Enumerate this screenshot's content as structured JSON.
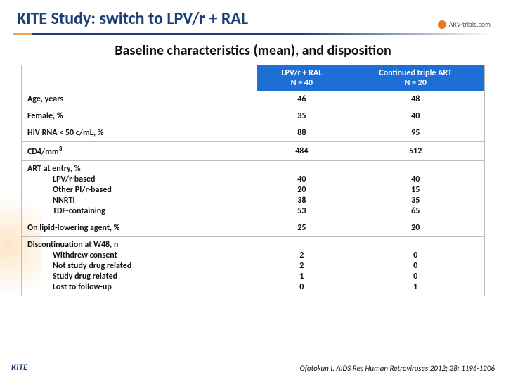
{
  "title": "KITE Study: switch to LPV/r + RAL",
  "logo_text": "ARV-trials.com",
  "subtitle": "Baseline characteristics (mean), and disposition",
  "table": {
    "header_bg": "#1d6fd6",
    "header_text_color": "#ffffff",
    "border_color": "#bdbdbd",
    "col_a": {
      "line1": "LPV/r + RAL",
      "line2": "N = 40"
    },
    "col_b": {
      "line1": "Continued triple ART",
      "line2": "N = 20"
    },
    "rows": [
      {
        "label": "Age, years",
        "a": "46",
        "b": "48"
      },
      {
        "label": "Female, %",
        "a": "35",
        "b": "40"
      },
      {
        "label": "HIV RNA < 50 c/mL, %",
        "a": "88",
        "b": "95"
      },
      {
        "label_html": "CD4/mm<sup>3</sup>",
        "a": "484",
        "b": "512"
      },
      {
        "label": "ART at entry, %",
        "subs": [
          "LPV/r-based",
          "Other PI/r-based",
          "NNRTI",
          "TDF-containing"
        ],
        "a_lines": [
          "40",
          "20",
          "38",
          "53"
        ],
        "b_lines": [
          "40",
          "15",
          "35",
          "65"
        ]
      },
      {
        "label": "On lipid-lowering agent, %",
        "a": "25",
        "b": "20"
      },
      {
        "label": "Discontinuation at W48, n",
        "subs": [
          "Withdrew consent",
          "Not study drug related",
          "Study drug related",
          "Lost to follow-up"
        ],
        "a_lines": [
          "2",
          "2",
          "1",
          "0"
        ],
        "b_lines": [
          "0",
          "0",
          "0",
          "1"
        ]
      }
    ]
  },
  "footer_left": "KITE",
  "footer_right": "Ofotokun I. AIDS Res Human Retroviruses 2012; 28: 1196-1206"
}
